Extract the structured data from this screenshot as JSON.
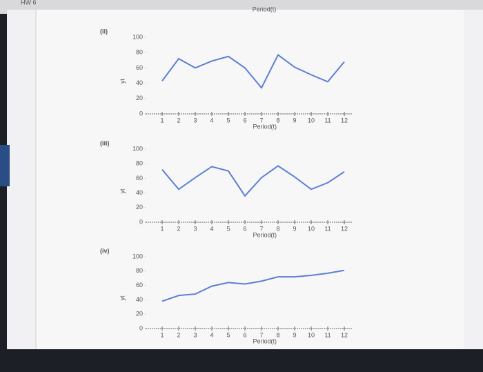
{
  "header": {
    "title": "HW 6",
    "top_cut_label": "Period(t)"
  },
  "chart_data": [
    {
      "type": "line",
      "label": "(ii)",
      "y_label": "yt",
      "x_label": "Period(t)",
      "x": [
        1,
        2,
        3,
        4,
        5,
        6,
        7,
        8,
        9,
        10,
        11,
        12
      ],
      "values": [
        43,
        72,
        60,
        69,
        75,
        60,
        34,
        77,
        61,
        51,
        42,
        68
      ],
      "color": "#5b7fd6",
      "xlim": [
        0,
        12.5
      ],
      "xticks": [
        1,
        2,
        3,
        4,
        5,
        6,
        7,
        8,
        9,
        10,
        11,
        12
      ],
      "ylim": [
        0,
        100
      ],
      "yticks": [
        0,
        20,
        40,
        60,
        80,
        100
      ]
    },
    {
      "type": "line",
      "label": "(iii)",
      "y_label": "yt",
      "x_label": "Period(t)",
      "x": [
        1,
        2,
        3,
        4,
        5,
        6,
        7,
        8,
        9,
        10,
        11,
        12
      ],
      "values": [
        72,
        45,
        61,
        76,
        70,
        36,
        61,
        77,
        62,
        45,
        54,
        69
      ],
      "color": "#5b7fd6",
      "xlim": [
        0,
        12.5
      ],
      "xticks": [
        1,
        2,
        3,
        4,
        5,
        6,
        7,
        8,
        9,
        10,
        11,
        12
      ],
      "ylim": [
        0,
        100
      ],
      "yticks": [
        0,
        20,
        40,
        60,
        80,
        100
      ]
    },
    {
      "type": "line",
      "label": "(iv)",
      "y_label": "yt",
      "x_label": "Period(t)",
      "x": [
        1,
        2,
        3,
        4,
        5,
        6,
        7,
        8,
        9,
        10,
        11,
        12
      ],
      "values": [
        38,
        46,
        48,
        59,
        64,
        62,
        66,
        72,
        72,
        74,
        77,
        81
      ],
      "color": "#5b7fd6",
      "xlim": [
        0,
        12.5
      ],
      "xticks": [
        1,
        2,
        3,
        4,
        5,
        6,
        7,
        8,
        9,
        10,
        11,
        12
      ],
      "ylim": [
        0,
        100
      ],
      "yticks": [
        0,
        20,
        40,
        60,
        80,
        100
      ]
    }
  ]
}
